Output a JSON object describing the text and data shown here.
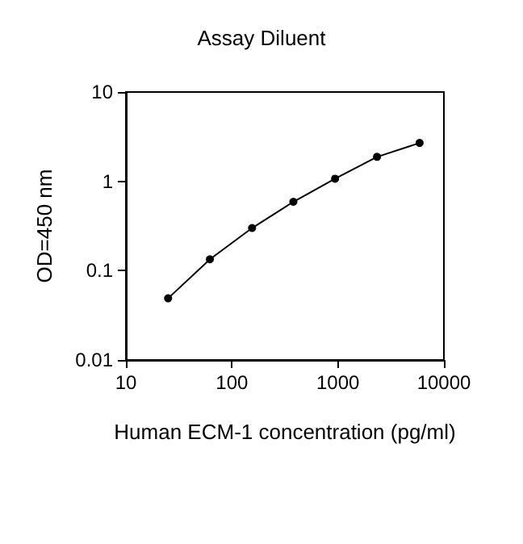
{
  "chart_data": {
    "type": "line",
    "title": "Assay Diluent",
    "xlabel": "Human ECM-1 concentration (pg/ml)",
    "ylabel": "OD=450 nm",
    "x": [
      25,
      62,
      155,
      380,
      940,
      2340,
      5900
    ],
    "series": [
      {
        "color": "#000000",
        "values": [
          0.049,
          0.134,
          0.3,
          0.59,
          1.07,
          1.88,
          2.69
        ]
      }
    ],
    "xlim": [
      10,
      10000
    ],
    "xticks": [
      10,
      100,
      1000,
      10000
    ],
    "ylim": [
      0.01,
      10
    ],
    "yticks": [
      0.01,
      0.1,
      1,
      10
    ],
    "log": "xy",
    "grid": false,
    "marker": "circle",
    "line_style": "solid"
  }
}
